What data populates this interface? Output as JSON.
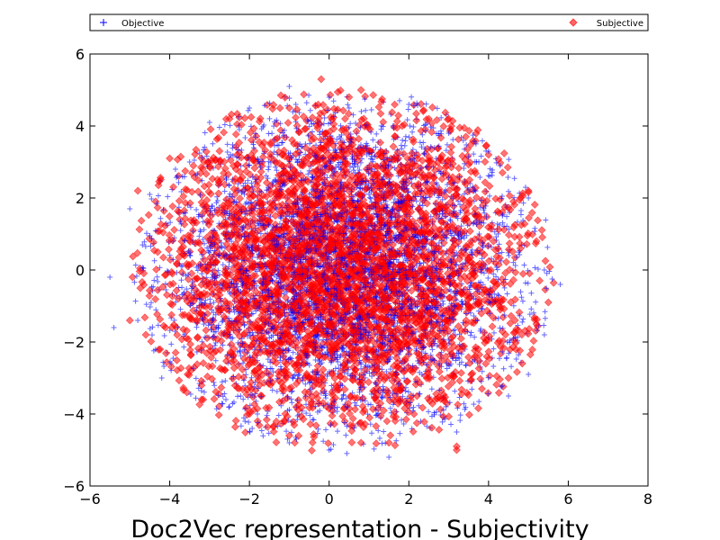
{
  "chart_data": {
    "type": "scatter",
    "title": "Doc2Vec representation - Subjectivity",
    "xlabel": "",
    "ylabel": "",
    "xlim": [
      -6,
      8
    ],
    "ylim": [
      -6,
      6
    ],
    "xticks": [
      -6,
      -4,
      -2,
      0,
      2,
      4,
      6,
      8
    ],
    "yticks": [
      -6,
      -4,
      -2,
      0,
      2,
      4,
      6
    ],
    "xtick_labels": [
      "−6",
      "−4",
      "−2",
      "0",
      "2",
      "4",
      "6",
      "8"
    ],
    "ytick_labels": [
      "−6",
      "−4",
      "−2",
      "0",
      "2",
      "4",
      "6"
    ],
    "grid": false,
    "legend_position": "top (above plot, spanning full width)",
    "series": [
      {
        "name": "Objective",
        "marker": "plus",
        "color": "#0000ff",
        "approx_points": 4000,
        "distribution": "roughly circular cloud centered near (0.4, 0), radius about 5",
        "sample_points": [
          [
            -5.5,
            -0.2
          ],
          [
            -5.4,
            -1.6
          ],
          [
            -5.0,
            1.7
          ],
          [
            -4.8,
            -1.4
          ],
          [
            -4.5,
            2.1
          ],
          [
            -4.2,
            -3.0
          ],
          [
            -3.5,
            3.0
          ],
          [
            -3.0,
            4.1
          ],
          [
            -2.5,
            -3.8
          ],
          [
            -2.0,
            4.5
          ],
          [
            -1.8,
            -4.0
          ],
          [
            -1.0,
            5.1
          ],
          [
            -1.0,
            -4.8
          ],
          [
            0.0,
            4.8
          ],
          [
            0.0,
            -5.0
          ],
          [
            0.5,
            4.5
          ],
          [
            1.5,
            -5.2
          ],
          [
            2.0,
            4.6
          ],
          [
            3.0,
            3.8
          ],
          [
            3.2,
            -4.5
          ],
          [
            4.0,
            3.3
          ],
          [
            4.5,
            -3.5
          ],
          [
            5.0,
            2.0
          ],
          [
            5.0,
            -2.9
          ],
          [
            5.4,
            0.0
          ],
          [
            5.8,
            -0.4
          ],
          [
            5.4,
            -1.8
          ],
          [
            1.0,
            0.0
          ],
          [
            -1.0,
            1.5
          ],
          [
            2.0,
            -1.0
          ]
        ]
      },
      {
        "name": "Subjective",
        "marker": "diamond",
        "color": "#ff0000",
        "approx_points": 4000,
        "distribution": "roughly circular cloud centered near (0.4, 0), radius about 5",
        "sample_points": [
          [
            -5.0,
            -1.4
          ],
          [
            -4.8,
            2.2
          ],
          [
            -4.6,
            -1.8
          ],
          [
            -4.0,
            3.1
          ],
          [
            -3.2,
            -3.6
          ],
          [
            -2.5,
            4.2
          ],
          [
            -2.0,
            -4.0
          ],
          [
            -1.0,
            4.5
          ],
          [
            -1.0,
            -4.6
          ],
          [
            -0.2,
            5.3
          ],
          [
            0.5,
            4.8
          ],
          [
            0.8,
            5.0
          ],
          [
            0.8,
            -4.8
          ],
          [
            1.5,
            -4.8
          ],
          [
            2.5,
            4.2
          ],
          [
            3.0,
            4.2
          ],
          [
            3.2,
            -4.9
          ],
          [
            3.2,
            -5.0
          ],
          [
            4.0,
            3.2
          ],
          [
            4.5,
            -3.0
          ],
          [
            5.0,
            2.2
          ],
          [
            5.2,
            -1.5
          ],
          [
            5.5,
            -0.9
          ],
          [
            5.2,
            0.8
          ],
          [
            -4.3,
            0.5
          ],
          [
            4.8,
            0.6
          ],
          [
            0.0,
            0.0
          ],
          [
            1.0,
            1.0
          ],
          [
            -1.5,
            -1.0
          ],
          [
            2.0,
            2.0
          ]
        ]
      }
    ]
  }
}
